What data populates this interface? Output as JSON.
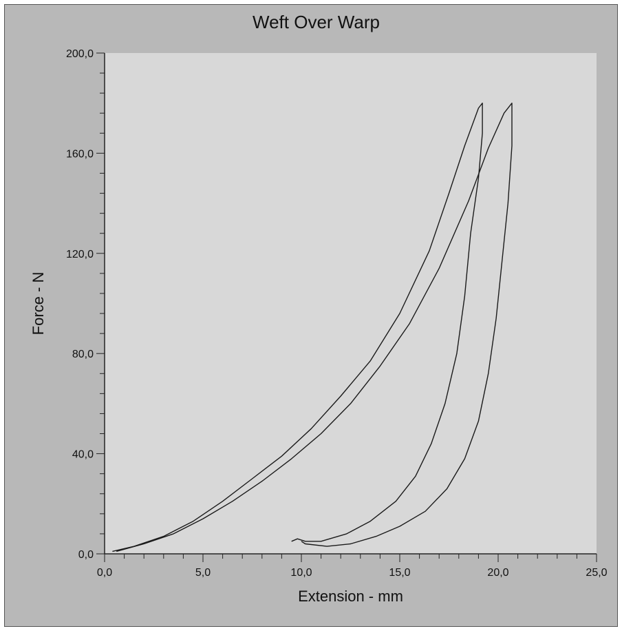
{
  "chart_data": {
    "type": "line",
    "title": "Weft Over Warp",
    "xlabel": "Extension - mm",
    "ylabel": "Force - N",
    "xlim": [
      0,
      25
    ],
    "ylim": [
      0,
      200
    ],
    "x_ticks": [
      "0,0",
      "5,0",
      "10,0",
      "15,0",
      "20,0",
      "25,0"
    ],
    "y_ticks": [
      "0,0",
      "40,0",
      "80,0",
      "120,0",
      "160,0",
      "200,0"
    ],
    "x_tick_values": [
      0,
      5,
      10,
      15,
      20,
      25
    ],
    "y_tick_values": [
      0,
      40,
      80,
      120,
      160,
      200
    ],
    "grid": false,
    "legend": "none",
    "colors": {
      "background": "#b8b8b8",
      "plot_area": "#d8d8d8",
      "line": "#1a1a1a"
    },
    "series": [
      {
        "x": [
          0.4,
          1.5,
          3.0,
          4.5,
          6.0,
          7.5,
          9.0,
          10.5,
          12.0,
          13.5,
          15.0,
          16.5,
          17.5,
          18.3,
          19.0,
          19.2,
          19.2,
          19.0,
          18.6,
          18.3,
          17.9,
          17.3,
          16.6,
          15.8,
          14.8,
          13.5,
          12.3,
          11.0,
          10.2,
          9.8,
          9.5
        ],
        "y": [
          1,
          3,
          7,
          13,
          21,
          30,
          39,
          50,
          63,
          77,
          96,
          121,
          144,
          163,
          178,
          180,
          168,
          150,
          128,
          103,
          80,
          60,
          44,
          31,
          21,
          13,
          8,
          5,
          5,
          6,
          5
        ]
      },
      {
        "x": [
          0.6,
          2.0,
          3.5,
          5.0,
          6.5,
          8.0,
          9.5,
          11.0,
          12.5,
          14.0,
          15.5,
          17.0,
          18.5,
          19.5,
          20.3,
          20.7,
          20.7,
          20.5,
          20.2,
          19.9,
          19.5,
          19.0,
          18.3,
          17.4,
          16.3,
          15.0,
          13.8,
          12.5,
          11.3,
          10.2,
          10.0
        ],
        "y": [
          1,
          4,
          8,
          14,
          21,
          29,
          38,
          48,
          60,
          75,
          92,
          114,
          141,
          162,
          176,
          180,
          163,
          140,
          117,
          94,
          72,
          53,
          38,
          26,
          17,
          11,
          7,
          4,
          3,
          4,
          5
        ]
      }
    ]
  }
}
